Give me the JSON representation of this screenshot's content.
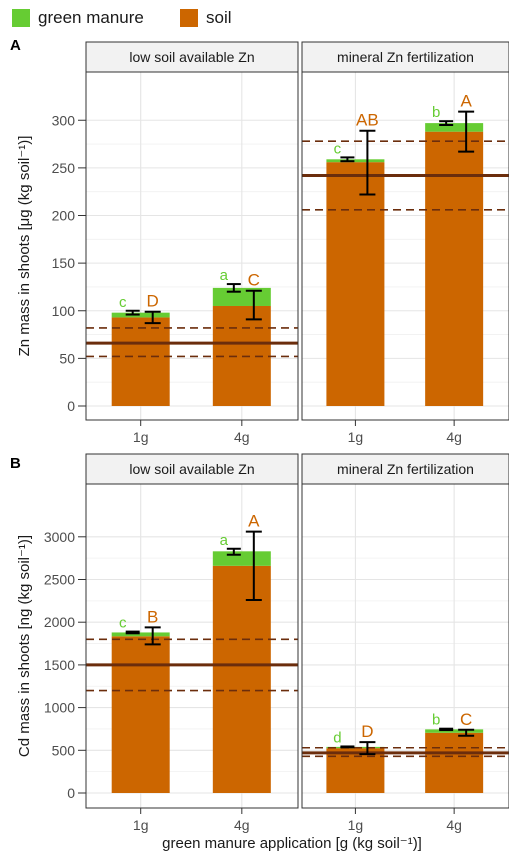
{
  "legend": {
    "items": [
      {
        "label": "green manure",
        "color": "#66cc33"
      },
      {
        "label": "soil",
        "color": "#cc6600"
      }
    ]
  },
  "x_axis_title": "green manure application [g (kg soil⁻¹)]",
  "colors": {
    "green_manure": "#66cc33",
    "soil": "#cc6600",
    "control_line": "#6b2d0c",
    "strip_bg": "#f2f2f2",
    "grid": "#e5e5e5"
  },
  "chart_data": [
    {
      "panel_label": "A",
      "type": "bar",
      "stacked": true,
      "ylabel": "Zn mass in shoots [μg (kg soil⁻¹)]",
      "ylim": [
        0,
        335
      ],
      "yticks": [
        0,
        50,
        100,
        150,
        200,
        250,
        300
      ],
      "categories": [
        "1g",
        "4g"
      ],
      "grid": true,
      "facets": [
        {
          "title": "low soil available Zn",
          "control_mean": 66,
          "control_band": [
            52,
            82
          ],
          "bars": [
            {
              "category": "1g",
              "soil": 93,
              "green_manure": 5,
              "total": 98,
              "total_err": [
                96,
                100
              ],
              "soil_err": [
                87,
                99
              ],
              "total_letter": "c",
              "soil_letter": "D"
            },
            {
              "category": "4g",
              "soil": 105,
              "green_manure": 19,
              "total": 124,
              "total_err": [
                120,
                128
              ],
              "soil_err": [
                91,
                121
              ],
              "total_letter": "a",
              "soil_letter": "C"
            }
          ]
        },
        {
          "title": "mineral Zn fertilization",
          "control_mean": 242,
          "control_band": [
            206,
            278
          ],
          "bars": [
            {
              "category": "1g",
              "soil": 256,
              "green_manure": 3,
              "total": 259,
              "total_err": [
                257,
                261
              ],
              "soil_err": [
                222,
                289
              ],
              "total_letter": "c",
              "soil_letter": "AB"
            },
            {
              "category": "4g",
              "soil": 288,
              "green_manure": 9,
              "total": 297,
              "total_err": [
                295,
                299
              ],
              "soil_err": [
                267,
                309
              ],
              "total_letter": "b",
              "soil_letter": "A"
            }
          ]
        }
      ]
    },
    {
      "panel_label": "B",
      "type": "bar",
      "stacked": true,
      "ylabel": "Cd mass in shoots [ng (kg soil⁻¹)]",
      "ylim": [
        0,
        3300
      ],
      "yticks": [
        0,
        500,
        1000,
        1500,
        2000,
        2500,
        3000
      ],
      "categories": [
        "1g",
        "4g"
      ],
      "grid": true,
      "facets": [
        {
          "title": "low soil available Zn",
          "control_mean": 1500,
          "control_band": [
            1200,
            1800
          ],
          "bars": [
            {
              "category": "1g",
              "soil": 1835,
              "green_manure": 45,
              "total": 1880,
              "total_err": [
                1870,
                1890
              ],
              "soil_err": [
                1740,
                1940
              ],
              "total_letter": "c",
              "soil_letter": "B"
            },
            {
              "category": "4g",
              "soil": 2660,
              "green_manure": 170,
              "total": 2830,
              "total_err": [
                2790,
                2860
              ],
              "soil_err": [
                2260,
                3060
              ],
              "total_letter": "a",
              "soil_letter": "A"
            }
          ]
        },
        {
          "title": "mineral Zn fertilization",
          "control_mean": 470,
          "control_band": [
            430,
            530
          ],
          "bars": [
            {
              "category": "1g",
              "soil": 525,
              "green_manure": 15,
              "total": 540,
              "total_err": [
                535,
                545
              ],
              "soil_err": [
                455,
                595
              ],
              "total_letter": "d",
              "soil_letter": "D"
            },
            {
              "category": "4g",
              "soil": 705,
              "green_manure": 40,
              "total": 745,
              "total_err": [
                737,
                753
              ],
              "soil_err": [
                670,
                740
              ],
              "total_letter": "b",
              "soil_letter": "C"
            }
          ]
        }
      ]
    }
  ]
}
